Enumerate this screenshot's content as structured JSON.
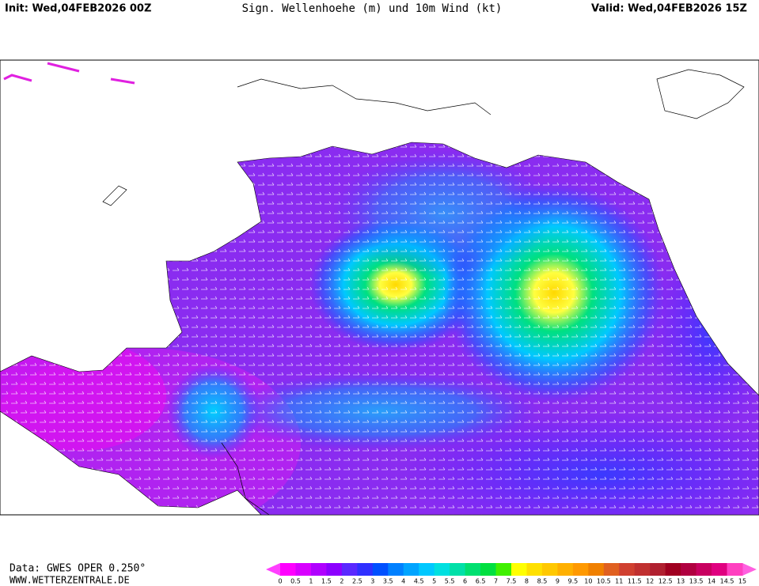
{
  "header": {
    "init": "Init: Wed,04FEB2026 00Z",
    "title": "Sign. Wellenhoehe (m) und 10m Wind (kt)",
    "valid": "Valid: Wed,04FEB2026 15Z"
  },
  "footer": {
    "source": "Data: GWES OPER 0.250°",
    "website": "WWW.WETTERZENTRALE.DE"
  },
  "colorbar": {
    "labels": [
      0,
      0.5,
      1,
      1.5,
      2,
      2.5,
      3,
      3.5,
      4,
      4.5,
      5,
      5.5,
      6,
      6.5,
      7,
      7.5,
      8,
      8.5,
      9,
      9.5,
      10,
      10.5,
      11,
      11.5,
      12,
      12.5,
      13,
      13.5,
      14,
      14.5,
      15
    ],
    "colors": [
      "#ff00ff",
      "#d800ff",
      "#b000ff",
      "#8c00ff",
      "#5a28ff",
      "#3030ff",
      "#0050ff",
      "#0080ff",
      "#00a4ff",
      "#00c8ff",
      "#00e0e0",
      "#00e0a8",
      "#00e070",
      "#00e040",
      "#40f000",
      "#ffff00",
      "#ffe000",
      "#ffc800",
      "#ffb000",
      "#ff9900",
      "#f08000",
      "#e06020",
      "#d04030",
      "#c03030",
      "#b02030",
      "#a00020",
      "#b00040",
      "#c80060",
      "#e00080",
      "#ff40c0"
    ],
    "under_color": "#ff40ff",
    "over_color": "#ff60e0"
  }
}
